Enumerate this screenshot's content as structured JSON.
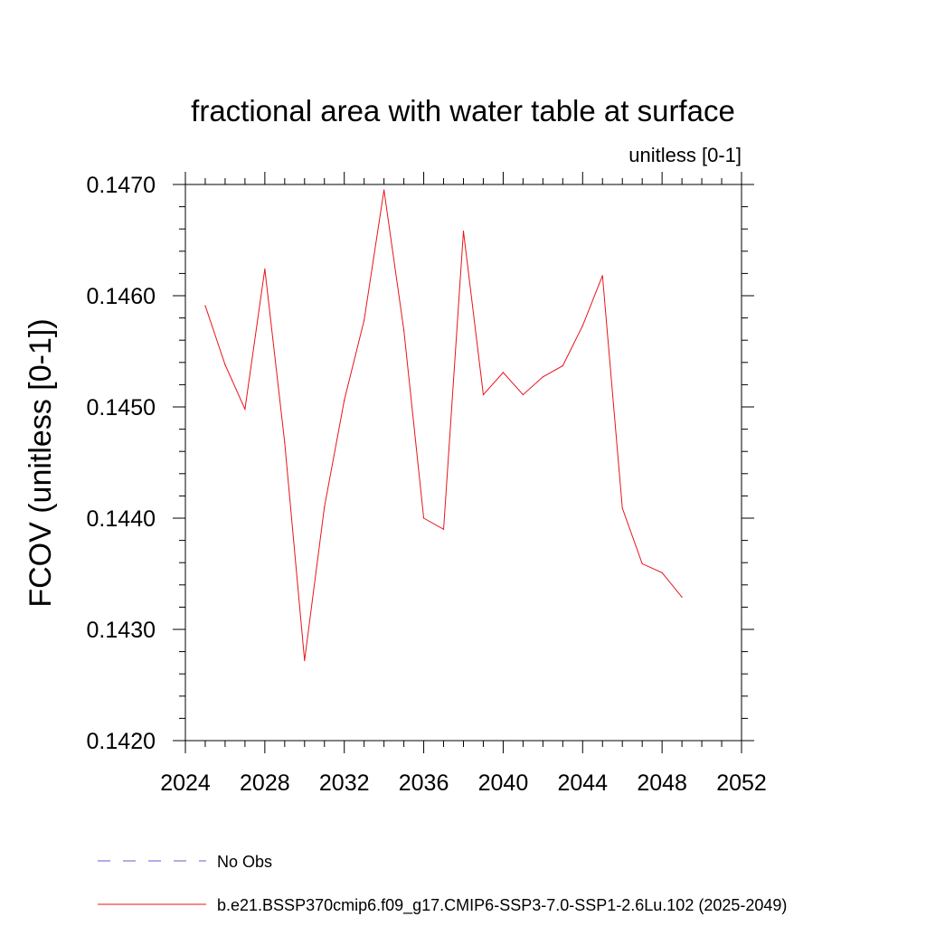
{
  "chart_data": {
    "type": "line",
    "title": "fractional area with water table at surface",
    "units_label": "unitless [0-1]",
    "ylabel": "FCOV  (unitless [0-1])",
    "xlabel": "",
    "xlim": [
      2024,
      2052
    ],
    "ylim": [
      0.142,
      0.147
    ],
    "x_ticks": [
      2024,
      2028,
      2032,
      2036,
      2040,
      2044,
      2048,
      2052
    ],
    "x_tick_labels": [
      "2024",
      "2028",
      "2032",
      "2036",
      "2040",
      "2044",
      "2048",
      "2052"
    ],
    "y_ticks": [
      0.142,
      0.143,
      0.144,
      0.145,
      0.146,
      0.147
    ],
    "y_tick_labels": [
      "0.1420",
      "0.1430",
      "0.1440",
      "0.1450",
      "0.1460",
      "0.1470"
    ],
    "x_minor_step": 1,
    "y_minor_step": 0.0002,
    "grid": false,
    "series": [
      {
        "name": "b.e21.BSSP370cmip6.f09_g17.CMIP6-SSP3-7.0-SSP1-2.6Lu.102 (2025-2049)",
        "color": "#e8141a",
        "style": "solid",
        "x": [
          2025,
          2026,
          2027,
          2028,
          2029,
          2030,
          2031,
          2032,
          2033,
          2034,
          2035,
          2036,
          2037,
          2038,
          2039,
          2040,
          2041,
          2042,
          2043,
          2044,
          2045,
          2046,
          2047,
          2048,
          2049
        ],
        "values": [
          0.14591,
          0.14538,
          0.14498,
          0.14624,
          0.14468,
          0.14272,
          0.1441,
          0.14506,
          0.14578,
          0.14695,
          0.14569,
          0.144,
          0.1439,
          0.14658,
          0.14511,
          0.14531,
          0.14511,
          0.14527,
          0.14537,
          0.14573,
          0.14618,
          0.14409,
          0.14359,
          0.14351,
          0.14329
        ]
      }
    ],
    "legend": [
      {
        "label": "No Obs",
        "color": "#6a5acd",
        "style": "dashed"
      },
      {
        "label": "b.e21.BSSP370cmip6.f09_g17.CMIP6-SSP3-7.0-SSP1-2.6Lu.102 (2025-2049)",
        "color": "#e8141a",
        "style": "solid"
      }
    ]
  }
}
